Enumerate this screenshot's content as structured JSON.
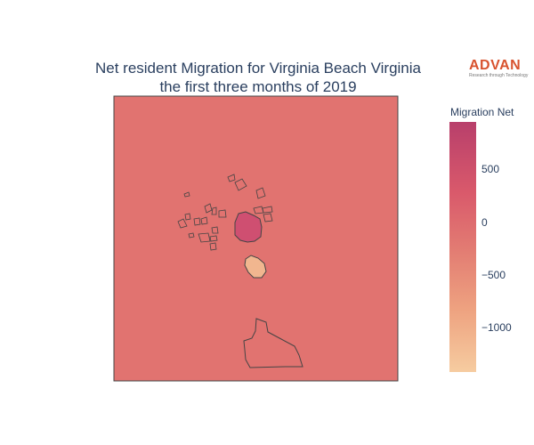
{
  "title_line1": "Net resident Migration for Virginia Beach Virginia",
  "title_line2": "the first three months of 2019",
  "logo": {
    "word": "ADVAN",
    "tagline": "Research through Technology",
    "color": "#d8532f"
  },
  "colorbar": {
    "title": "Migration Net",
    "ticks": [
      {
        "label": "500",
        "value": 500
      },
      {
        "label": "0",
        "value": 0
      },
      {
        "label": "−500",
        "value": -500
      },
      {
        "label": "−1000",
        "value": -1000
      }
    ],
    "min": -1400,
    "max": 950,
    "colors": [
      "#b83f6b",
      "#d9596b",
      "#e27a72",
      "#eea280",
      "#f6cca0"
    ]
  },
  "map": {
    "background_color": "#e17370",
    "regions": [
      {
        "name": "central-high",
        "color": "#cf4f71",
        "value": 700
      },
      {
        "name": "south-low",
        "color": "#f1b68f",
        "value": -800
      },
      {
        "name": "southern-large",
        "color": "#e17370",
        "value": 0
      }
    ]
  }
}
